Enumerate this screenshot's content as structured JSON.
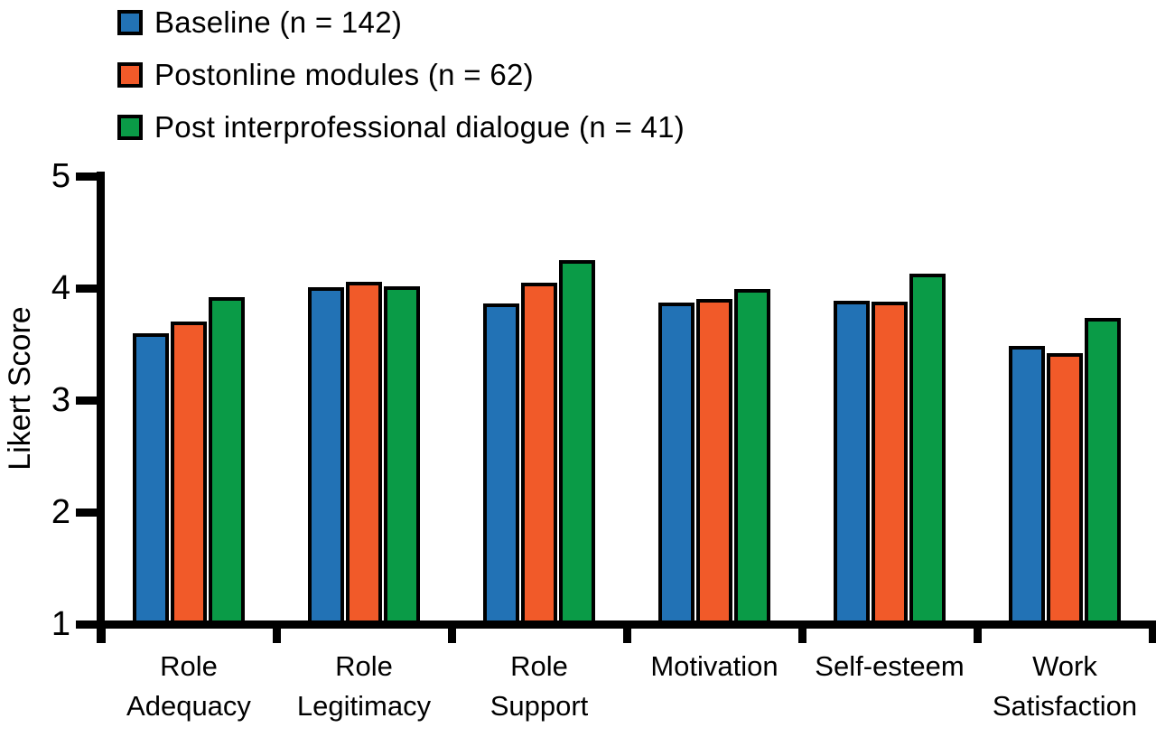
{
  "figure": {
    "background_color": "#ffffff",
    "axis_color": "#000000",
    "bar_outline_color": "#000000"
  },
  "chart_data": {
    "type": "bar",
    "title": "",
    "xlabel": "",
    "ylabel": "Likert Score",
    "ylim": [
      1,
      5
    ],
    "yticks": [
      1,
      2,
      3,
      4,
      5
    ],
    "grid": false,
    "legend_position": "top-left",
    "categories": [
      "Role Adequacy",
      "Role Legitimacy",
      "Role Support",
      "Motivation",
      "Self-esteem",
      "Work Satisfaction"
    ],
    "series": [
      {
        "name": "Baseline (n = 142)",
        "color": "#2272B5",
        "values": [
          3.6,
          4.01,
          3.86,
          3.87,
          3.89,
          3.48
        ]
      },
      {
        "name": "Postonline modules (n = 62)",
        "color": "#F15A29",
        "values": [
          3.7,
          4.06,
          4.05,
          3.9,
          3.88,
          3.42
        ]
      },
      {
        "name": "Post interprofessional dialogue (n = 41)",
        "color": "#0A9B47",
        "values": [
          3.92,
          4.02,
          4.25,
          3.99,
          4.13,
          3.73
        ]
      }
    ]
  }
}
